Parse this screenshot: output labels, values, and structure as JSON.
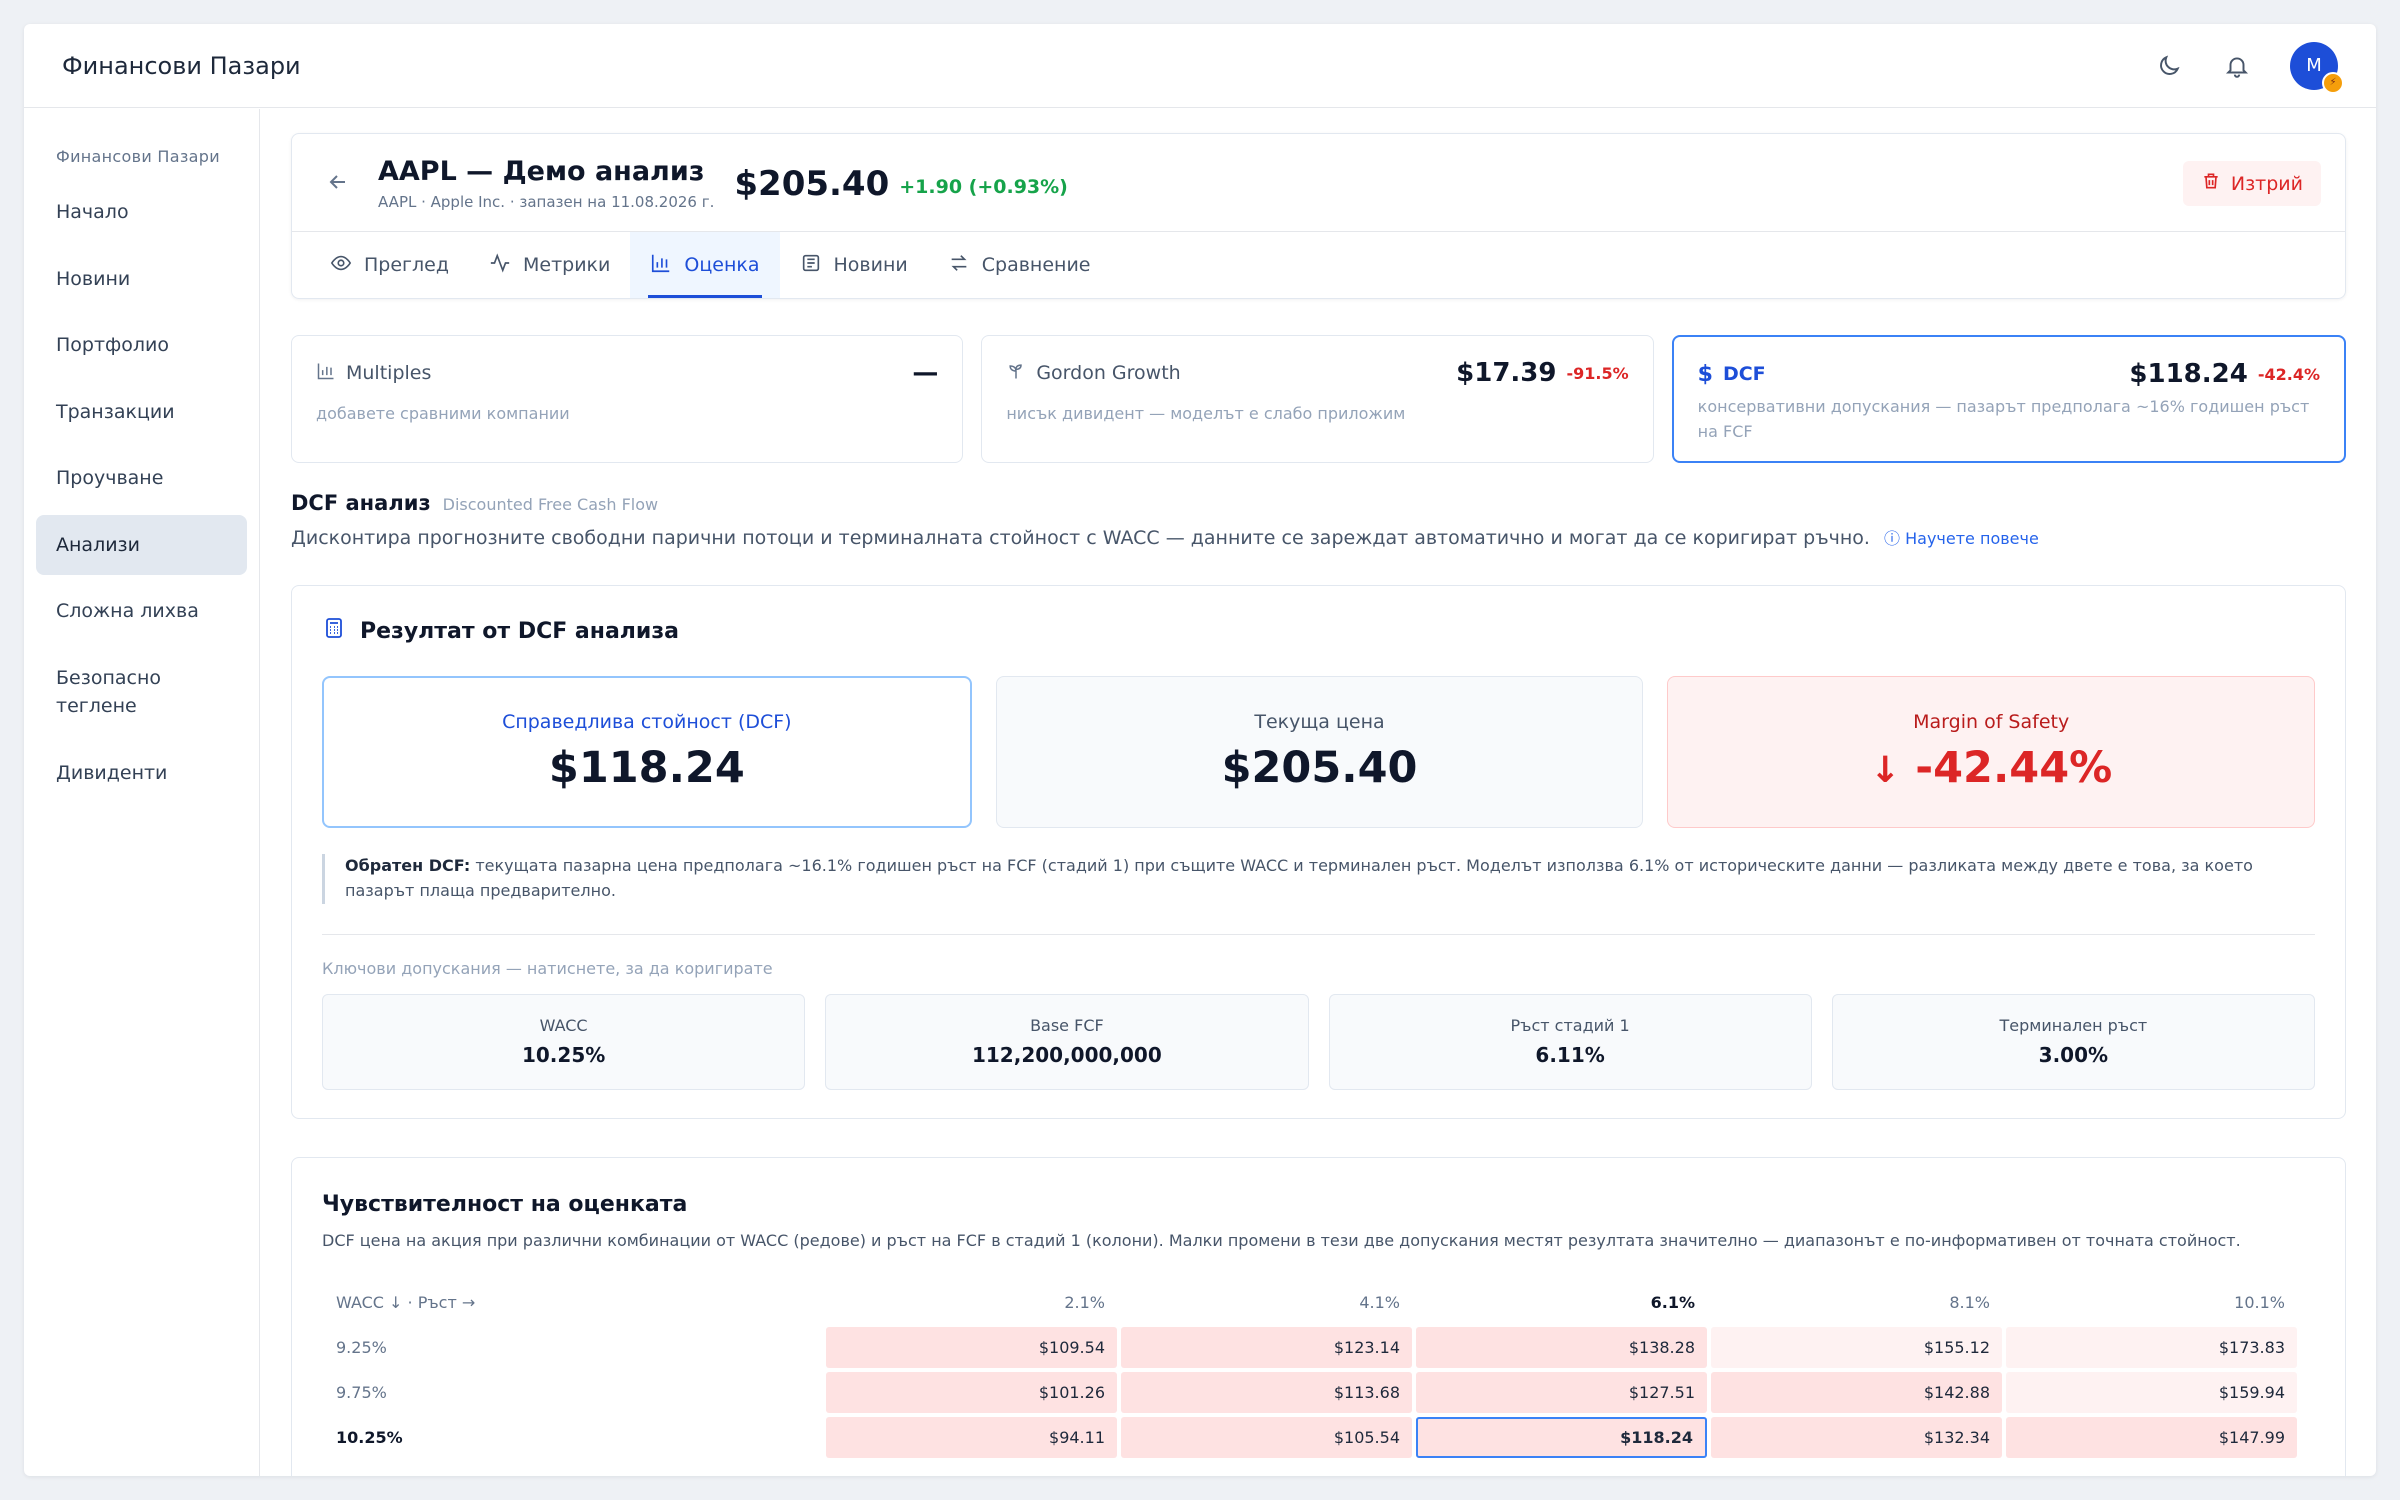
{
  "app": {
    "brand": "Финансови Пазари",
    "avatar_initial": "M",
    "avatar_badge": "⚡"
  },
  "sidebar": {
    "heading": "Финансови Пазари",
    "items": [
      "Начало",
      "Новини",
      "Портфолио",
      "Транзакции",
      "Проучване",
      "Анализи",
      "Сложна лихва",
      "Безопасно теглене",
      "Дивиденти"
    ],
    "active_index": 5
  },
  "header": {
    "title": "AAPL — Демо анализ",
    "subtitle": "AAPL · Apple Inc. · запазен на 11.08.2026 г.",
    "price": "$205.40",
    "change": "+1.90 (+0.93%)",
    "delete_label": "Изтрий"
  },
  "tabs": [
    {
      "label": "Преглед",
      "icon": "eye-icon"
    },
    {
      "label": "Метрики",
      "icon": "activity-icon"
    },
    {
      "label": "Оценка",
      "icon": "bar-chart-icon"
    },
    {
      "label": "Новини",
      "icon": "newspaper-icon"
    },
    {
      "label": "Сравнение",
      "icon": "swap-icon"
    }
  ],
  "models": {
    "multiples": {
      "name": "Multiples",
      "value": "—",
      "desc": "добавете сравними компании"
    },
    "gordon": {
      "name": "Gordon Growth",
      "value": "$17.39",
      "pct": "-91.5%",
      "desc": "нисък дивидент — моделът е слабо приложим"
    },
    "dcf": {
      "name": "DCF",
      "value": "$118.24",
      "pct": "-42.4%",
      "desc": "консервативни допускания — пазарът предполага ~16% годишен ръст на FCF"
    }
  },
  "dcf_section": {
    "title": "DCF анализ",
    "subtitle": "Discounted Free Cash Flow",
    "desc": "Дисконтира прогнозните свободни парични потоци и терминалната стойност с WACC — данните се зареждат автоматично и могат да се коригират ръчно.",
    "learn_more": "Научете повече"
  },
  "result": {
    "title": "Резултат от DCF анализа",
    "fair_label": "Справедлива стойност (DCF)",
    "fair_value": "$118.24",
    "current_label": "Текуща цена",
    "current_value": "$205.40",
    "mos_label": "Margin of Safety",
    "mos_value": "-42.44%",
    "reverse_bold": "Обратен DCF:",
    "reverse_text": " текущата пазарна цена предполага ~16.1% годишен ръст на FCF (стадий 1) при същите WACC и терминален ръст. Моделът използва 6.1% от историческите данни — разликата между двете е това, за което пазарът плаща предварително.",
    "assumptions_label": "Ключови допускания — натиснете, за да коригирате",
    "assumptions": [
      {
        "name": "WACC",
        "value": "10.25%"
      },
      {
        "name": "Base FCF",
        "value": "112,200,000,000"
      },
      {
        "name": "Ръст стадий 1",
        "value": "6.11%"
      },
      {
        "name": "Терминален ръст",
        "value": "3.00%"
      }
    ]
  },
  "sensitivity": {
    "title": "Чувствителност на оценката",
    "desc": "DCF цена на акция при различни комбинации от WACC (редове) и ръст на FCF в стадий 1 (колони). Малки промени в тези две допускания местят резултата значително — диапазонът е по-информативен от точната стойност.",
    "corner": "WACC ↓ · Ръст →",
    "columns": [
      "2.1%",
      "4.1%",
      "6.1%",
      "8.1%",
      "10.1%"
    ],
    "rows": [
      {
        "wacc": "9.25%",
        "values": [
          "$109.54",
          "$123.14",
          "$138.28",
          "$155.12",
          "$173.83"
        ]
      },
      {
        "wacc": "9.75%",
        "values": [
          "$101.26",
          "$113.68",
          "$127.51",
          "$142.88",
          "$159.94"
        ]
      },
      {
        "wacc": "10.25%",
        "values": [
          "$94.11",
          "$105.54",
          "$118.24",
          "$132.34",
          "$147.99"
        ]
      }
    ]
  }
}
